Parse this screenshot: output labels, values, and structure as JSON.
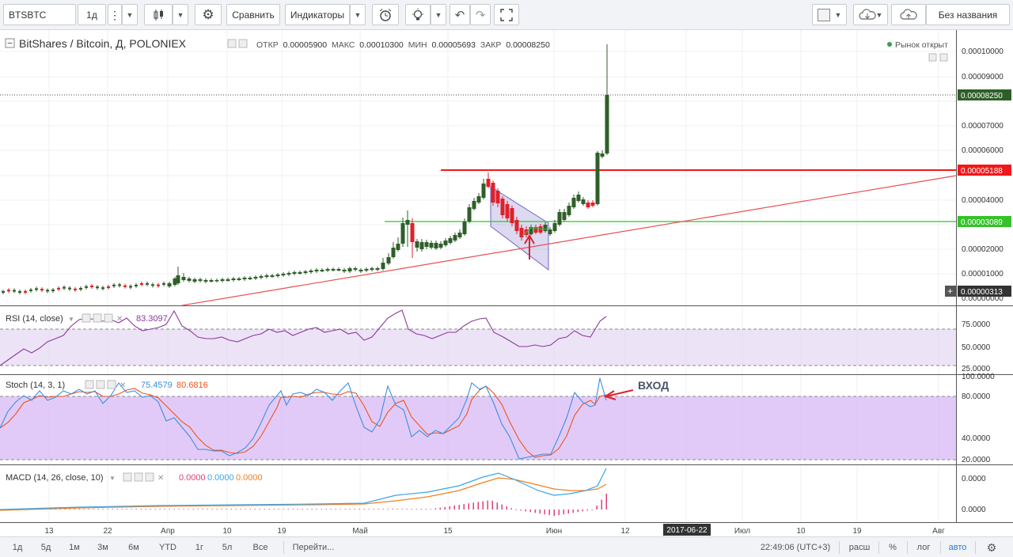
{
  "toolbar": {
    "symbol": "BTSBTC",
    "interval": "1д",
    "compare_label": "Сравнить",
    "indicators_label": "Индикаторы",
    "layout_name": "Без названия"
  },
  "legend": {
    "title": "BitShares / Bitcoin, Д, POLONIEX",
    "open_label": "ОТКР",
    "open_value": "0.00005900",
    "high_label": "МАКС",
    "high_value": "0.00010300",
    "low_label": "МИН",
    "low_value": "0.00005693",
    "close_label": "ЗАКР",
    "close_value": "0.00008250",
    "market_status": "Рынок открыт"
  },
  "price_axis": {
    "ticks": [
      "0.00010000",
      "0.00009000",
      "0.00007000",
      "0.00006000",
      "0.00004000",
      "0.00002000",
      "0.00001000",
      "0.00000000"
    ],
    "current_price": "0.00008250",
    "resistance_label": "0.00005188",
    "support_label": "0.00003089",
    "crosshair_label": "0.00000313"
  },
  "rsi": {
    "label": "RSI (14, close)",
    "value": "83.3097",
    "ticks": [
      "75.0000",
      "50.0000",
      "25.0000"
    ]
  },
  "stoch": {
    "label": "Stoch (14, 3, 1)",
    "k_value": "75.4579",
    "d_value": "80.6816",
    "ticks": [
      "100.0000",
      "80.0000",
      "40.0000",
      "20.0000"
    ],
    "annotation": "ВХОД"
  },
  "macd": {
    "label": "MACD (14, 26, close, 10)",
    "hist_value": "0.0000",
    "macd_value": "0.0000",
    "signal_value": "0.0000",
    "ticks": [
      "0.0000",
      "0.0000"
    ]
  },
  "time_axis": {
    "labels": [
      "13",
      "22",
      "Апр",
      "10",
      "19",
      "Май",
      "15",
      "Июн",
      "12",
      "Июл",
      "10",
      "19",
      "Авг"
    ],
    "highlight": "2017-06-22"
  },
  "bottom_bar": {
    "ranges": [
      "1д",
      "5д",
      "1м",
      "3м",
      "6м",
      "YTD",
      "1г",
      "5л",
      "Все"
    ],
    "goto_label": "Перейти...",
    "clock": "22:49:06 (UTC+3)",
    "session": "расш",
    "percent": "%",
    "log": "лог",
    "auto": "авто"
  },
  "colors": {
    "bull": "#2f5f29",
    "bear": "#e0202a",
    "resistance": "#f01818",
    "support": "#35c22a",
    "trendline": "#e85050",
    "rsi_line": "#8a3a9a",
    "stoch_k": "#3a8fe0",
    "stoch_d": "#e8561f",
    "macd_line": "#3aa6e8",
    "signal_line": "#f08020",
    "hist": "#e0407a",
    "accent_blue": "#2a7fd4"
  }
}
